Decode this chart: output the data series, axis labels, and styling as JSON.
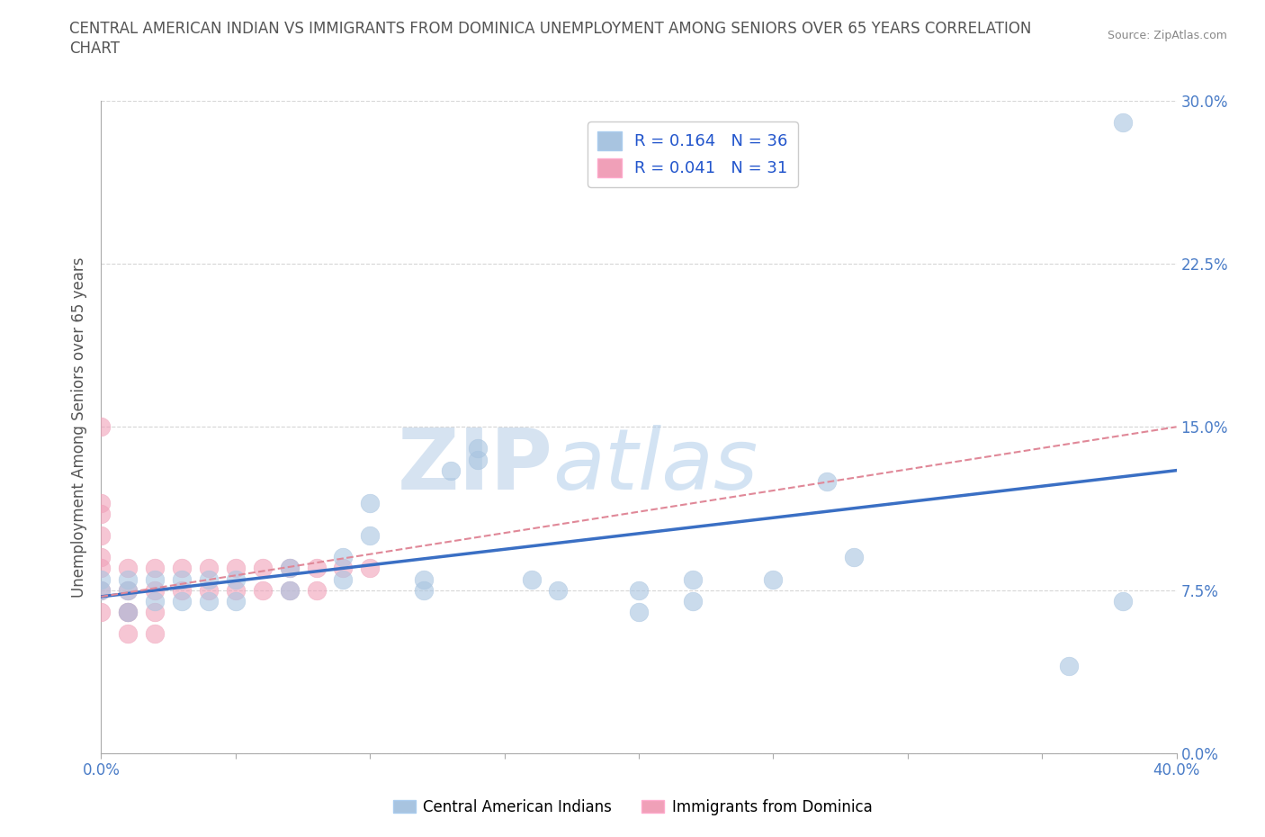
{
  "title_line1": "CENTRAL AMERICAN INDIAN VS IMMIGRANTS FROM DOMINICA UNEMPLOYMENT AMONG SENIORS OVER 65 YEARS CORRELATION",
  "title_line2": "CHART",
  "source": "Source: ZipAtlas.com",
  "ylabel": "Unemployment Among Seniors over 65 years",
  "xlim": [
    0.0,
    0.4
  ],
  "ylim": [
    0.0,
    0.3
  ],
  "yticks": [
    0.0,
    0.075,
    0.15,
    0.225,
    0.3
  ],
  "ytick_labels": [
    "0.0%",
    "7.5%",
    "15.0%",
    "22.5%",
    "30.0%"
  ],
  "xtick_positions": [
    0.0,
    0.05,
    0.1,
    0.15,
    0.2,
    0.25,
    0.3,
    0.35,
    0.4
  ],
  "xtick_labels": [
    "0.0%",
    "",
    "",
    "",
    "",
    "",
    "",
    "",
    "40.0%"
  ],
  "blue_R": 0.164,
  "blue_N": 36,
  "pink_R": 0.041,
  "pink_N": 31,
  "blue_color": "#a8c4e0",
  "pink_color": "#f0a0b8",
  "trend_blue_color": "#3a6fc4",
  "trend_pink_color": "#e08898",
  "watermark_zip": "ZIP",
  "watermark_atlas": "atlas",
  "blue_scatter_x": [
    0.27,
    0.14,
    0.13,
    0.14,
    0.1,
    0.1,
    0.09,
    0.09,
    0.07,
    0.07,
    0.05,
    0.05,
    0.04,
    0.04,
    0.03,
    0.03,
    0.02,
    0.02,
    0.01,
    0.01,
    0.01,
    0.0,
    0.0,
    0.16,
    0.17,
    0.12,
    0.12,
    0.2,
    0.22,
    0.25,
    0.28,
    0.36,
    0.38,
    0.38,
    0.2,
    0.22
  ],
  "blue_scatter_y": [
    0.125,
    0.135,
    0.13,
    0.14,
    0.115,
    0.1,
    0.09,
    0.08,
    0.085,
    0.075,
    0.08,
    0.07,
    0.08,
    0.07,
    0.08,
    0.07,
    0.08,
    0.07,
    0.08,
    0.075,
    0.065,
    0.08,
    0.075,
    0.08,
    0.075,
    0.08,
    0.075,
    0.075,
    0.08,
    0.08,
    0.09,
    0.04,
    0.29,
    0.07,
    0.065,
    0.07
  ],
  "pink_scatter_x": [
    0.0,
    0.0,
    0.0,
    0.0,
    0.0,
    0.0,
    0.0,
    0.0,
    0.01,
    0.01,
    0.01,
    0.01,
    0.02,
    0.02,
    0.02,
    0.03,
    0.03,
    0.04,
    0.04,
    0.05,
    0.05,
    0.06,
    0.06,
    0.07,
    0.07,
    0.08,
    0.08,
    0.09,
    0.1,
    0.01,
    0.02
  ],
  "pink_scatter_y": [
    0.15,
    0.115,
    0.11,
    0.1,
    0.09,
    0.085,
    0.075,
    0.065,
    0.085,
    0.075,
    0.065,
    0.055,
    0.085,
    0.075,
    0.065,
    0.085,
    0.075,
    0.085,
    0.075,
    0.085,
    0.075,
    0.085,
    0.075,
    0.085,
    0.075,
    0.085,
    0.075,
    0.085,
    0.085,
    0.065,
    0.055
  ],
  "background_color": "#ffffff",
  "grid_color": "#cccccc",
  "legend_label_blue": "Central American Indians",
  "legend_label_pink": "Immigrants from Dominica",
  "blue_trend_x0": 0.0,
  "blue_trend_y0": 0.072,
  "blue_trend_x1": 0.4,
  "blue_trend_y1": 0.13,
  "pink_trend_x0": 0.0,
  "pink_trend_y0": 0.072,
  "pink_trend_x1": 0.4,
  "pink_trend_y1": 0.15
}
